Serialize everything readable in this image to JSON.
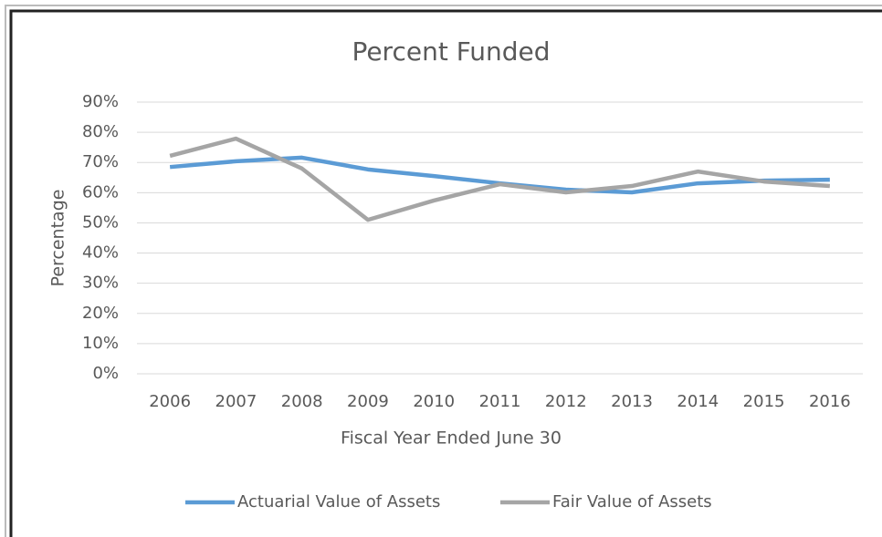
{
  "chart_data": {
    "type": "line",
    "title": "Percent Funded",
    "xlabel": "Fiscal Year Ended June 30",
    "ylabel": "Percentage",
    "categories": [
      "2006",
      "2007",
      "2008",
      "2009",
      "2010",
      "2011",
      "2012",
      "2013",
      "2014",
      "2015",
      "2016"
    ],
    "series": [
      {
        "name": "Actuarial Value of Assets",
        "color": "#5b9bd5",
        "values": [
          68.5,
          70.4,
          71.6,
          67.7,
          65.5,
          63.1,
          61.0,
          60.1,
          63.1,
          64.0,
          64.3
        ]
      },
      {
        "name": "Fair Value of Assets",
        "color": "#a5a5a5",
        "values": [
          72.2,
          77.9,
          68.0,
          51.0,
          57.4,
          62.8,
          60.1,
          62.2,
          67.0,
          63.7,
          62.2
        ]
      }
    ],
    "ylim": [
      0,
      90
    ],
    "yticks": [
      {
        "value": 0,
        "label": "0%"
      },
      {
        "value": 10,
        "label": "10%"
      },
      {
        "value": 20,
        "label": "20%"
      },
      {
        "value": 30,
        "label": "30%"
      },
      {
        "value": 40,
        "label": "40%"
      },
      {
        "value": 50,
        "label": "50%"
      },
      {
        "value": 60,
        "label": "60%"
      },
      {
        "value": 70,
        "label": "70%"
      },
      {
        "value": 80,
        "label": "80%"
      },
      {
        "value": 90,
        "label": "90%"
      }
    ],
    "grid": true,
    "legend": "bottom"
  }
}
